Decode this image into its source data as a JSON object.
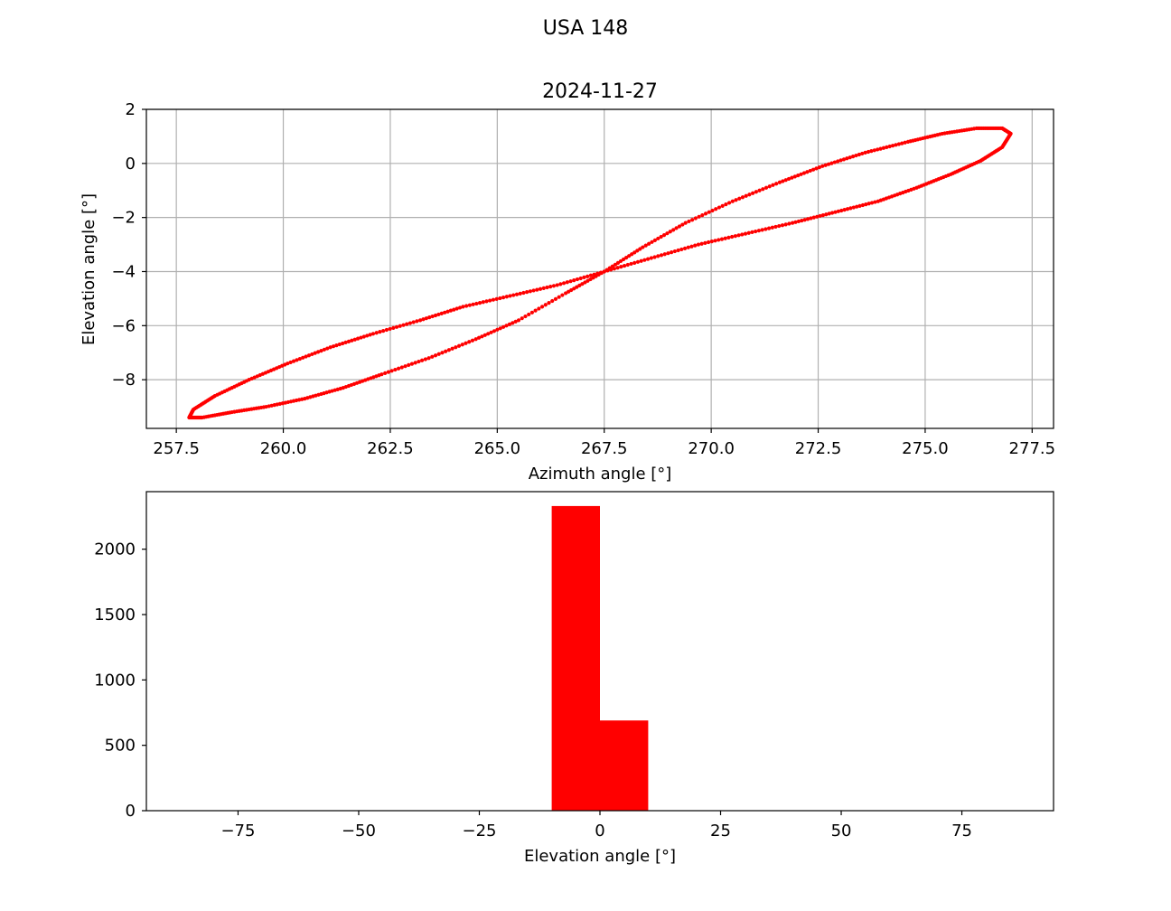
{
  "figure": {
    "suptitle": "USA 148"
  },
  "colors": {
    "series": "#ff0000",
    "grid": "#b0b0b0",
    "axes": "#000000",
    "background": "#ffffff"
  },
  "chart_data": [
    {
      "type": "scatter",
      "title": "2024-11-27",
      "xlabel": "Azimuth angle [°]",
      "ylabel": "Elevation angle [°]",
      "xlim": [
        256.8,
        278.0
      ],
      "ylim": [
        -9.8,
        2.0
      ],
      "grid": true,
      "xticks": [
        257.5,
        260.0,
        262.5,
        265.0,
        267.5,
        270.0,
        272.5,
        275.0,
        277.5
      ],
      "xtick_labels": [
        "257.5",
        "260.0",
        "262.5",
        "265.0",
        "267.5",
        "270.0",
        "272.5",
        "275.0",
        "277.5"
      ],
      "yticks": [
        2,
        0,
        -2,
        -4,
        -6,
        -8
      ],
      "ytick_labels": [
        "2",
        "0",
        "−2",
        "−4",
        "−6",
        "−8"
      ],
      "shape": "figure-eight loop",
      "series": [
        {
          "marker": "point",
          "x": [
            257.8,
            258.1,
            258.8,
            259.6,
            260.5,
            261.4,
            262.3,
            263.4,
            264.5,
            265.5,
            266.6,
            267.5,
            268.6,
            269.7,
            270.8,
            271.9,
            272.9,
            273.9,
            274.8,
            275.6,
            276.3,
            276.8,
            277.0,
            276.8,
            276.2,
            275.4,
            274.6,
            273.6,
            272.6,
            271.6,
            270.5,
            269.4,
            268.4,
            267.5,
            266.4,
            265.3,
            264.2,
            263.2,
            262.1,
            261.1,
            260.1,
            259.2,
            258.4,
            257.9
          ],
          "y": [
            -9.4,
            -9.4,
            -9.2,
            -9.0,
            -8.7,
            -8.3,
            -7.8,
            -7.2,
            -6.5,
            -5.8,
            -4.8,
            -4.0,
            -3.5,
            -3.0,
            -2.6,
            -2.2,
            -1.8,
            -1.4,
            -0.9,
            -0.4,
            0.1,
            0.6,
            1.1,
            1.3,
            1.3,
            1.1,
            0.8,
            0.4,
            -0.1,
            -0.7,
            -1.4,
            -2.2,
            -3.1,
            -4.0,
            -4.5,
            -4.9,
            -5.3,
            -5.8,
            -6.3,
            -6.8,
            -7.4,
            -8.0,
            -8.6,
            -9.1
          ]
        }
      ]
    },
    {
      "type": "bar",
      "subtype": "histogram",
      "title": "",
      "xlabel": "Elevation angle [°]",
      "ylabel": "",
      "xlim": [
        -94,
        94
      ],
      "ylim": [
        0,
        2440
      ],
      "grid": false,
      "xticks": [
        -75,
        -50,
        -25,
        0,
        25,
        50,
        75
      ],
      "xtick_labels": [
        "−75",
        "−50",
        "−25",
        "0",
        "25",
        "50",
        "75"
      ],
      "yticks": [
        0,
        500,
        1000,
        1500,
        2000
      ],
      "ytick_labels": [
        "0",
        "500",
        "1000",
        "1500",
        "2000"
      ],
      "bins": [
        {
          "from": -10,
          "to": 0,
          "value": 2330
        },
        {
          "from": 0,
          "to": 10,
          "value": 690
        }
      ]
    }
  ]
}
